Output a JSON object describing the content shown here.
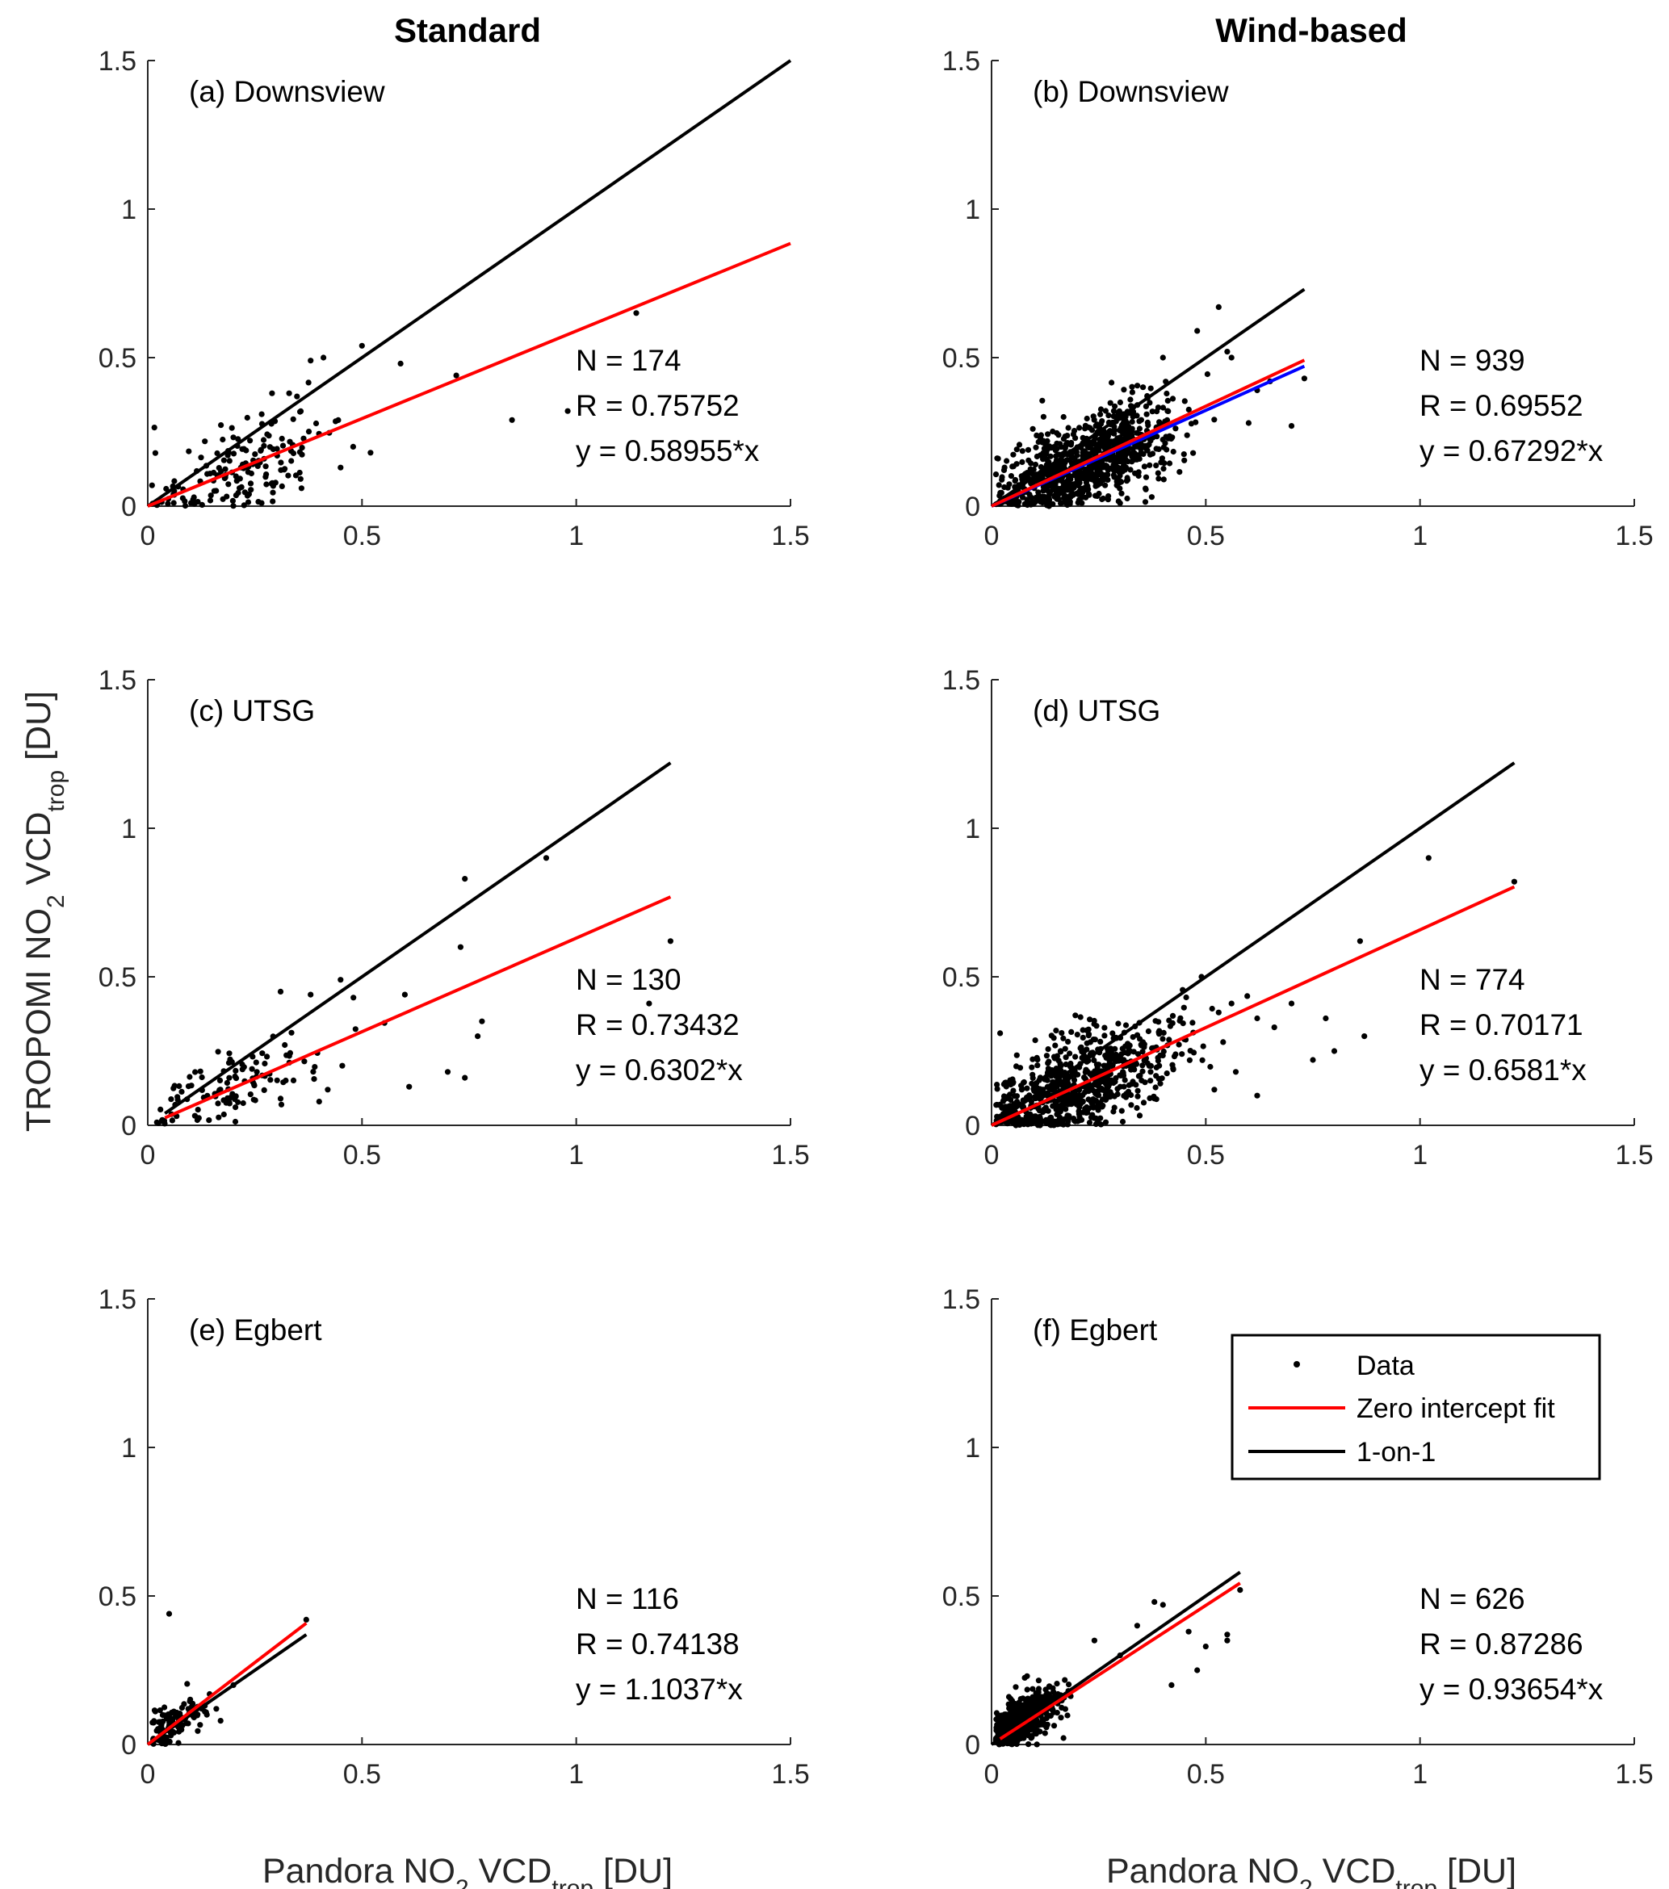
{
  "column_titles": [
    "Standard",
    "Wind-based"
  ],
  "x_axis_label": {
    "prefix": "Pandora NO",
    "sub2": "2",
    "mid": " VCD",
    "subtrop": "trop",
    "suffix": " [DU]"
  },
  "y_axis_label": {
    "prefix": "TROPOMI NO",
    "sub2": "2",
    "mid": " VCD",
    "subtrop": "trop",
    "suffix": " [DU]"
  },
  "legend": {
    "data": "Data",
    "fit": "Zero intercept fit",
    "one_to_one": "1-on-1"
  },
  "colors": {
    "fit": "#ff0000",
    "one_to_one": "#000000",
    "data": "#000000",
    "alt_fit": "#0000ff"
  },
  "chart_data": [
    {
      "type": "scatter",
      "panel": "(a) Downsview",
      "column": "Standard",
      "xlim": [
        0,
        1.5
      ],
      "ylim": [
        0,
        1.5
      ],
      "xticks": [
        0,
        0.5,
        1,
        1.5
      ],
      "yticks": [
        0,
        0.5,
        1,
        1.5
      ],
      "tick_labels": [
        "0",
        "0.5",
        "1",
        "1.5"
      ],
      "n_text": "N = 174",
      "r_text": "R = 0.75752",
      "eq_text": "y = 0.58955*x",
      "slope": 0.58955,
      "fit_range": [
        0,
        1.5
      ],
      "one_range": [
        0,
        1.5
      ],
      "n_points": 174,
      "cluster_center": [
        0.22,
        0.16
      ],
      "spread": [
        0.1,
        0.08
      ],
      "outliers": [
        [
          1.14,
          0.65
        ],
        [
          0.85,
          0.29
        ],
        [
          0.98,
          0.32
        ],
        [
          0.72,
          0.44
        ],
        [
          0.59,
          0.48
        ],
        [
          0.5,
          0.54
        ],
        [
          0.41,
          0.5
        ],
        [
          0.38,
          0.49
        ],
        [
          0.52,
          0.18
        ],
        [
          0.33,
          0.38
        ],
        [
          0.29,
          0.38
        ],
        [
          0.45,
          0.13
        ],
        [
          0.06,
          0.04
        ],
        [
          0.01,
          0.07
        ]
      ]
    },
    {
      "type": "scatter",
      "panel": "(b) Downsview",
      "column": "Wind-based",
      "xlim": [
        0,
        1.5
      ],
      "ylim": [
        0,
        1.5
      ],
      "xticks": [
        0,
        0.5,
        1,
        1.5
      ],
      "yticks": [
        0,
        0.5,
        1,
        1.5
      ],
      "tick_labels": [
        "0",
        "0.5",
        "1",
        "1.5"
      ],
      "n_text": "N = 939",
      "r_text": "R = 0.69552",
      "eq_text": "y = 0.67292*x",
      "slope": 0.67292,
      "fit_range": [
        0,
        0.73
      ],
      "one_range": [
        0,
        0.73
      ],
      "alt_line": {
        "slope": 0.645,
        "range": [
          0,
          0.73
        ]
      },
      "n_points": 939,
      "cluster_center": [
        0.22,
        0.16
      ],
      "spread": [
        0.1,
        0.08
      ],
      "outliers": [
        [
          0.53,
          0.67
        ],
        [
          0.48,
          0.59
        ],
        [
          0.73,
          0.43
        ],
        [
          0.7,
          0.27
        ],
        [
          0.56,
          0.5
        ],
        [
          0.55,
          0.52
        ],
        [
          0.62,
          0.39
        ],
        [
          0.65,
          0.42
        ],
        [
          0.3,
          0.01
        ],
        [
          0.4,
          0.5
        ],
        [
          0.6,
          0.28
        ]
      ]
    },
    {
      "type": "scatter",
      "panel": "(c) UTSG",
      "column": "Standard",
      "xlim": [
        0,
        1.5
      ],
      "ylim": [
        0,
        1.5
      ],
      "xticks": [
        0,
        0.5,
        1,
        1.5
      ],
      "yticks": [
        0,
        0.5,
        1,
        1.5
      ],
      "tick_labels": [
        "0",
        "0.5",
        "1",
        "1.5"
      ],
      "n_text": "N = 130",
      "r_text": "R = 0.73432",
      "eq_text": "y = 0.6302*x",
      "slope": 0.6302,
      "fit_range": [
        0.04,
        1.22
      ],
      "one_range": [
        0.04,
        1.22
      ],
      "n_points": 130,
      "cluster_center": [
        0.2,
        0.15
      ],
      "spread": [
        0.1,
        0.07
      ],
      "outliers": [
        [
          0.74,
          0.83
        ],
        [
          0.93,
          0.9
        ],
        [
          1.22,
          0.62
        ],
        [
          0.73,
          0.6
        ],
        [
          0.78,
          0.35
        ],
        [
          0.77,
          0.3
        ],
        [
          0.7,
          0.18
        ],
        [
          0.74,
          0.16
        ],
        [
          0.61,
          0.13
        ],
        [
          1.17,
          0.41
        ],
        [
          0.45,
          0.49
        ],
        [
          0.38,
          0.44
        ],
        [
          0.31,
          0.45
        ],
        [
          0.48,
          0.43
        ],
        [
          0.6,
          0.44
        ],
        [
          0.4,
          0.08
        ],
        [
          0.42,
          0.12
        ],
        [
          0.31,
          0.09
        ]
      ]
    },
    {
      "type": "scatter",
      "panel": "(d) UTSG",
      "column": "Wind-based",
      "xlim": [
        0,
        1.5
      ],
      "ylim": [
        0,
        1.5
      ],
      "xticks": [
        0,
        0.5,
        1,
        1.5
      ],
      "yticks": [
        0,
        0.5,
        1,
        1.5
      ],
      "tick_labels": [
        "0",
        "0.5",
        "1",
        "1.5"
      ],
      "n_text": "N = 774",
      "r_text": "R = 0.70171",
      "eq_text": "y = 0.6581*x",
      "slope": 0.6581,
      "fit_range": [
        0,
        1.22
      ],
      "one_range": [
        0,
        1.22
      ],
      "n_points": 774,
      "cluster_center": [
        0.2,
        0.15
      ],
      "spread": [
        0.12,
        0.09
      ],
      "outliers": [
        [
          1.02,
          0.9
        ],
        [
          1.22,
          0.82
        ],
        [
          0.86,
          0.62
        ],
        [
          0.87,
          0.3
        ],
        [
          0.78,
          0.36
        ],
        [
          0.8,
          0.25
        ],
        [
          0.75,
          0.22
        ],
        [
          0.7,
          0.41
        ],
        [
          0.62,
          0.36
        ],
        [
          0.66,
          0.33
        ],
        [
          0.56,
          0.41
        ],
        [
          0.53,
          0.38
        ],
        [
          0.62,
          0.1
        ],
        [
          0.57,
          0.18
        ],
        [
          0.02,
          0.31
        ],
        [
          0.49,
          0.5
        ]
      ]
    },
    {
      "type": "scatter",
      "panel": "(e) Egbert",
      "column": "Standard",
      "xlim": [
        0,
        1.5
      ],
      "ylim": [
        0,
        1.5
      ],
      "xticks": [
        0,
        0.5,
        1,
        1.5
      ],
      "yticks": [
        0,
        0.5,
        1,
        1.5
      ],
      "tick_labels": [
        "0",
        "0.5",
        "1",
        "1.5"
      ],
      "n_text": "N = 116",
      "r_text": "R = 0.74138",
      "eq_text": "y = 1.1037*x",
      "slope": 1.1037,
      "fit_range": [
        0,
        0.37
      ],
      "one_range": [
        0,
        0.37
      ],
      "n_points": 116,
      "cluster_center": [
        0.05,
        0.05
      ],
      "spread": [
        0.045,
        0.04
      ],
      "outliers": [
        [
          0.05,
          0.44
        ],
        [
          0.37,
          0.42
        ],
        [
          0.2,
          0.2
        ],
        [
          0.17,
          0.08
        ],
        [
          0.16,
          0.12
        ]
      ]
    },
    {
      "type": "scatter",
      "panel": "(f) Egbert",
      "column": "Wind-based",
      "xlim": [
        0,
        1.5
      ],
      "ylim": [
        0,
        1.5
      ],
      "xticks": [
        0,
        0.5,
        1,
        1.5
      ],
      "yticks": [
        0,
        0.5,
        1,
        1.5
      ],
      "tick_labels": [
        "0",
        "0.5",
        "1",
        "1.5"
      ],
      "n_text": "N = 626",
      "r_text": "R = 0.87286",
      "eq_text": "y = 0.93654*x",
      "slope": 0.93654,
      "fit_range": [
        0.02,
        0.58
      ],
      "one_range": [
        0,
        0.58
      ],
      "n_points": 626,
      "cluster_center": [
        0.06,
        0.06
      ],
      "spread": [
        0.05,
        0.045
      ],
      "outliers": [
        [
          0.58,
          0.52
        ],
        [
          0.55,
          0.35
        ],
        [
          0.55,
          0.37
        ],
        [
          0.4,
          0.47
        ],
        [
          0.38,
          0.48
        ],
        [
          0.46,
          0.38
        ],
        [
          0.48,
          0.25
        ],
        [
          0.5,
          0.33
        ],
        [
          0.34,
          0.4
        ],
        [
          0.42,
          0.2
        ],
        [
          0.24,
          0.35
        ],
        [
          0.3,
          0.3
        ]
      ]
    }
  ]
}
